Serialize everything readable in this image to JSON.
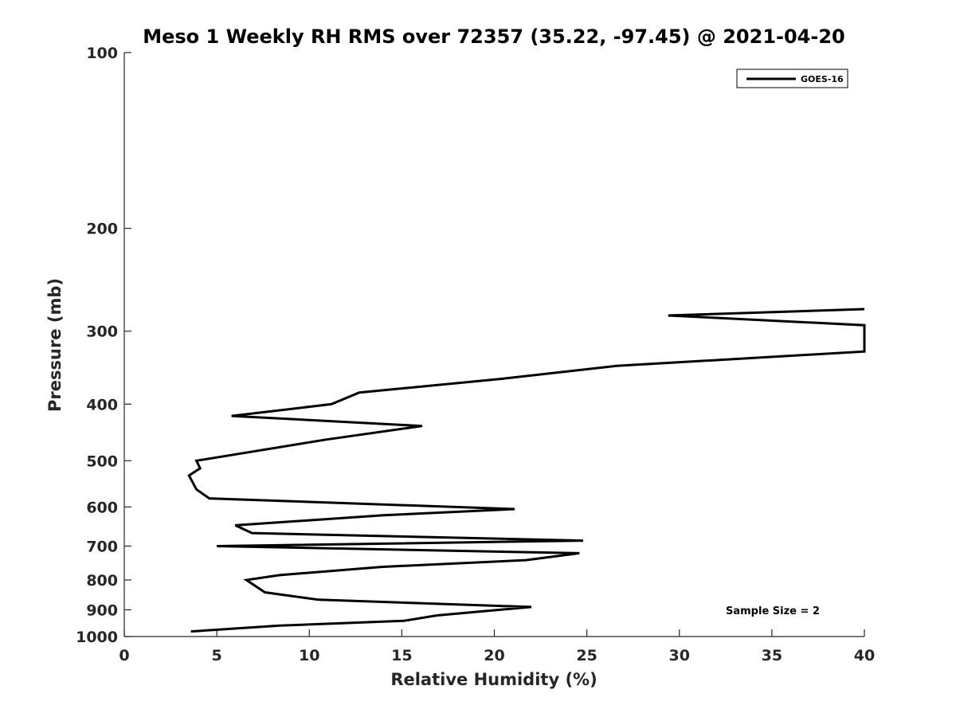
{
  "chart_data": {
    "type": "line",
    "title": "Meso 1 Weekly RH RMS over 72357 (35.22, -97.45) @ 2021-04-20",
    "xlabel": "Relative Humidity (%)",
    "ylabel": "Pressure (mb)",
    "xlim": [
      0,
      40
    ],
    "ylim": [
      1000,
      100
    ],
    "y_scale": "log",
    "x_ticks": [
      0,
      5,
      10,
      15,
      20,
      25,
      30,
      35,
      40
    ],
    "y_ticks": [
      100,
      200,
      300,
      400,
      500,
      600,
      700,
      800,
      900,
      1000
    ],
    "grid": false,
    "legend": "top-right",
    "annotation": "Sample Size = 2",
    "series": [
      {
        "name": "GOES-16",
        "color": "#000000",
        "points": [
          {
            "x": 40.0,
            "y": 275
          },
          {
            "x": 29.4,
            "y": 282
          },
          {
            "x": 40.0,
            "y": 293
          },
          {
            "x": 40.0,
            "y": 325
          },
          {
            "x": 26.6,
            "y": 344
          },
          {
            "x": 20.4,
            "y": 362
          },
          {
            "x": 12.7,
            "y": 382
          },
          {
            "x": 11.2,
            "y": 400
          },
          {
            "x": 5.8,
            "y": 419
          },
          {
            "x": 16.1,
            "y": 436
          },
          {
            "x": 10.9,
            "y": 460
          },
          {
            "x": 3.9,
            "y": 500
          },
          {
            "x": 4.1,
            "y": 515
          },
          {
            "x": 3.5,
            "y": 530
          },
          {
            "x": 3.9,
            "y": 560
          },
          {
            "x": 4.6,
            "y": 580
          },
          {
            "x": 21.1,
            "y": 605
          },
          {
            "x": 14.0,
            "y": 620
          },
          {
            "x": 6.0,
            "y": 645
          },
          {
            "x": 6.9,
            "y": 665
          },
          {
            "x": 24.8,
            "y": 685
          },
          {
            "x": 5.0,
            "y": 700
          },
          {
            "x": 24.6,
            "y": 720
          },
          {
            "x": 21.7,
            "y": 740
          },
          {
            "x": 13.9,
            "y": 760
          },
          {
            "x": 8.4,
            "y": 785
          },
          {
            "x": 6.6,
            "y": 800
          },
          {
            "x": 7.6,
            "y": 840
          },
          {
            "x": 10.5,
            "y": 865
          },
          {
            "x": 22.0,
            "y": 890
          },
          {
            "x": 19.4,
            "y": 905
          },
          {
            "x": 16.9,
            "y": 920
          },
          {
            "x": 15.1,
            "y": 940
          },
          {
            "x": 8.4,
            "y": 958
          },
          {
            "x": 3.6,
            "y": 980
          }
        ]
      }
    ]
  }
}
